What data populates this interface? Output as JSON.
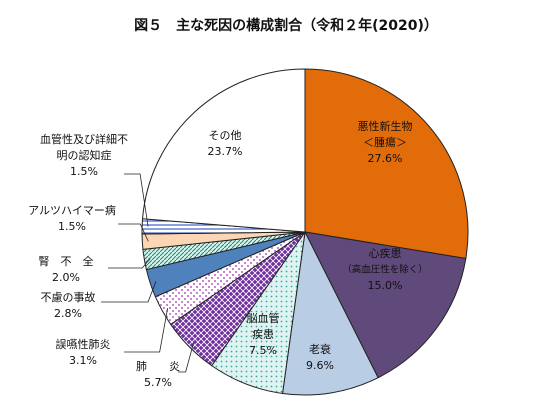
{
  "chart_data": {
    "type": "pie",
    "title": "図５　主な死因の構成割合（令和２年(2020)）",
    "start": "12 o'clock",
    "direction": "clockwise",
    "slices": [
      {
        "name": "悪性新生物＜腫瘍＞",
        "lines": [
          "悪性新生物",
          "＜腫瘍＞"
        ],
        "value": 27.6,
        "label": "27.6%",
        "color": "#e36c0a",
        "pattern": "solid"
      },
      {
        "name": "心疾患（高血圧性を除く）",
        "lines": [
          "心疾患",
          "（高血圧性を除く）"
        ],
        "value": 15.0,
        "label": "15.0%",
        "color": "#604a7b",
        "pattern": "solid"
      },
      {
        "name": "老衰",
        "lines": [
          "老衰"
        ],
        "value": 9.6,
        "label": "9.6%",
        "color": "#b9cde5",
        "pattern": "solid"
      },
      {
        "name": "脳血管疾患",
        "lines": [
          "脳血管",
          "疾患"
        ],
        "value": 7.5,
        "label": "7.5%",
        "color": "#dff4f2",
        "pattern": "dots"
      },
      {
        "name": "肺炎",
        "lines": [
          "肺　　炎"
        ],
        "value": 5.7,
        "label": "5.7%",
        "color": "#7030a0",
        "pattern": "diamond"
      },
      {
        "name": "誤嚥性肺炎",
        "lines": [
          "誤嚥性肺炎"
        ],
        "value": 3.1,
        "label": "3.1%",
        "color": "#b040c0",
        "pattern": "sparse-dots"
      },
      {
        "name": "不慮の事故",
        "lines": [
          "不慮の事故"
        ],
        "value": 2.8,
        "label": "2.8%",
        "color": "#4f81bd",
        "pattern": "solid"
      },
      {
        "name": "腎不全",
        "lines": [
          "腎　不　全"
        ],
        "value": 2.0,
        "label": "2.0%",
        "color": "#31a08c",
        "pattern": "hatch"
      },
      {
        "name": "アルツハイマー病",
        "lines": [
          "アルツハイマー病"
        ],
        "value": 1.5,
        "label": "1.5%",
        "color": "#fcd5b4",
        "pattern": "solid"
      },
      {
        "name": "血管性及び詳細不明の認知症",
        "lines": [
          "血管性及び詳細不",
          "明の認知症"
        ],
        "value": 1.5,
        "label": "1.5%",
        "color": "#4060c0",
        "pattern": "stripes"
      },
      {
        "name": "その他",
        "lines": [
          "その他"
        ],
        "value": 23.7,
        "label": "23.7%",
        "color": "#ffffff",
        "pattern": "solid"
      }
    ]
  }
}
